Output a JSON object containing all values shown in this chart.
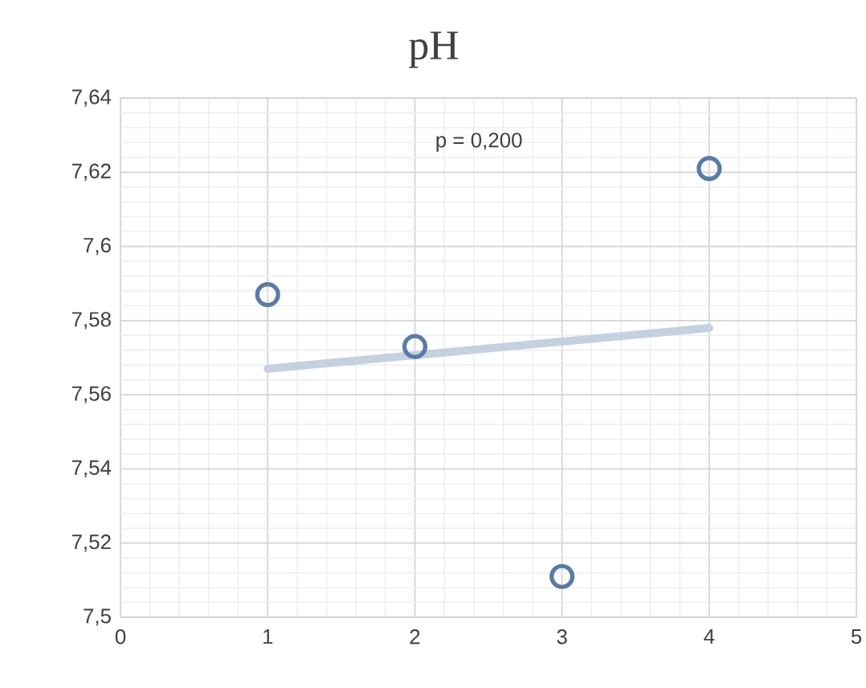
{
  "chart_data": {
    "type": "scatter",
    "title": "pH",
    "series": [
      {
        "color": "#5b7aa6",
        "marker": "circle",
        "x": [
          1,
          2,
          3,
          4
        ],
        "values": [
          7.587,
          7.573,
          7.511,
          7.621
        ]
      },
      {
        "type": "line",
        "marker": "none",
        "color": "#c5d0e0",
        "x": [
          1,
          4
        ],
        "values": [
          7.567,
          7.578
        ]
      }
    ],
    "annotations": [
      "p = 0,200"
    ],
    "xlim": [
      0,
      5
    ],
    "xticks": [
      0,
      1,
      2,
      3,
      4,
      5
    ],
    "ylim": [
      7.5,
      7.64
    ],
    "yticks": [
      {
        "value": 7.5,
        "label": "7,5"
      },
      {
        "value": 7.52,
        "label": "7,52"
      },
      {
        "value": 7.54,
        "label": "7,54"
      },
      {
        "value": 7.56,
        "label": "7,56"
      },
      {
        "value": 7.58,
        "label": "7,58"
      },
      {
        "value": 7.6,
        "label": "7,6"
      },
      {
        "value": 7.62,
        "label": "7,62"
      },
      {
        "value": 7.64,
        "label": "7,64"
      }
    ],
    "grid": true
  }
}
